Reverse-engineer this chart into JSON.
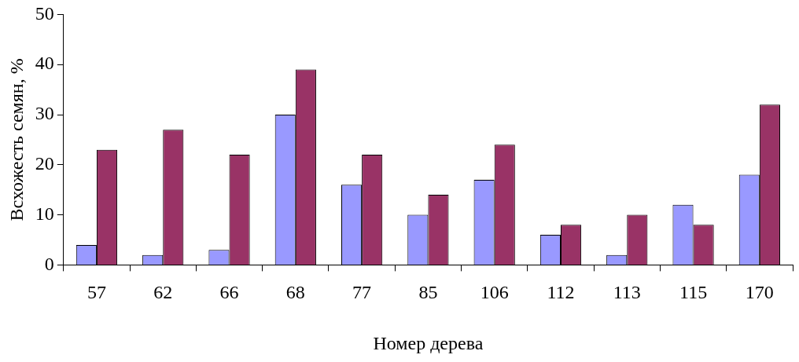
{
  "chart_data": {
    "type": "bar",
    "xlabel": "Номер дерева",
    "ylabel": "Всхожесть семян, %",
    "categories": [
      "57",
      "62",
      "66",
      "68",
      "77",
      "85",
      "106",
      "112",
      "113",
      "115",
      "170"
    ],
    "series": [
      {
        "color": "#9999ff",
        "values": [
          4,
          2,
          3,
          30,
          16,
          10,
          17,
          6,
          2,
          12,
          18
        ]
      },
      {
        "color": "#993366",
        "values": [
          23,
          27,
          22,
          39,
          22,
          14,
          24,
          8,
          10,
          8,
          32
        ]
      }
    ],
    "ylim": [
      0,
      50
    ],
    "yticks": [
      0,
      10,
      20,
      30,
      40,
      50
    ],
    "grid": false,
    "legend": false
  }
}
